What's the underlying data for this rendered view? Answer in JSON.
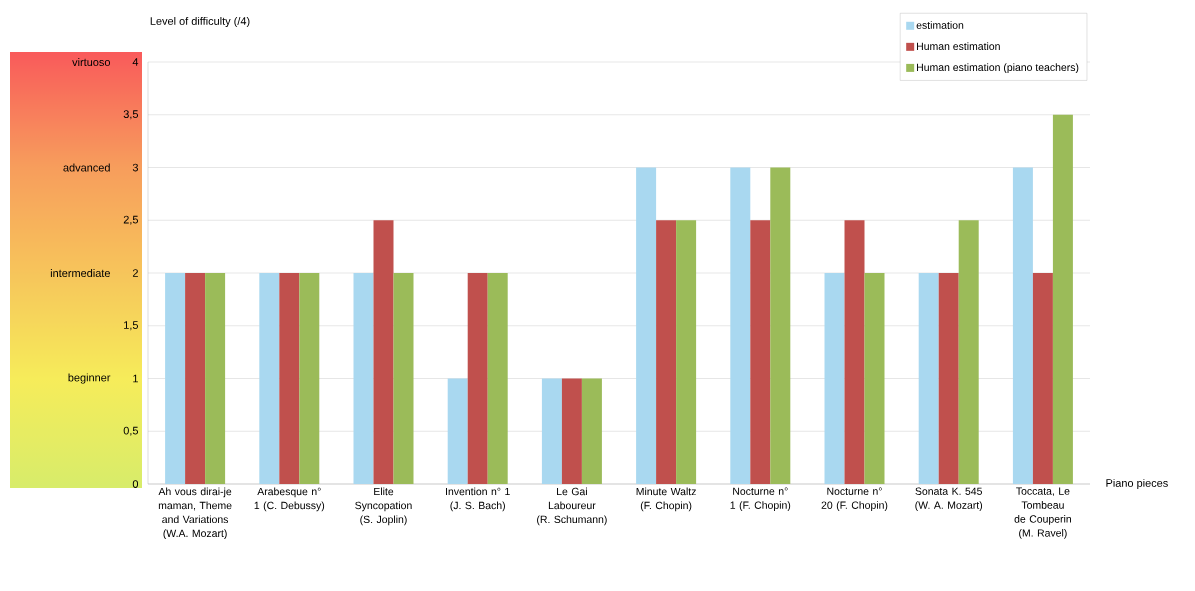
{
  "chart_data": {
    "type": "bar",
    "xlabel": "Piano pieces",
    "ylabel": "Level of difficulty (/4)",
    "categories": [
      "Ah vous dirai-je maman, Theme and Variations (W.A. Mozart)",
      "Arabesque n° 1 (C. Debussy)",
      "Elite Syncopation (S. Joplin)",
      "Invention n° 1 (J. S. Bach)",
      "Le Gai Laboureur (R. Schumann)",
      "Minute Waltz (F. Chopin)",
      "Nocturne n° 1 (F. Chopin)",
      "Nocturne n° 20 (F. Chopin)",
      "Sonata K. 545 (W. A. Mozart)",
      "Toccata, Le Tombeau de Couperin (M. Ravel)"
    ],
    "series": [
      {
        "name": "estimation",
        "color": "#a9d8f0",
        "values": [
          2,
          2,
          2,
          1,
          1,
          3,
          3,
          2,
          2,
          3
        ]
      },
      {
        "name": "Human estimation",
        "color": "#c0504d",
        "values": [
          2,
          2,
          2.5,
          2,
          1,
          2.5,
          2.5,
          2.5,
          2,
          2
        ]
      },
      {
        "name": "Human estimation (piano teachers)",
        "color": "#9bbb59",
        "values": [
          2,
          2,
          2,
          2,
          1,
          2.5,
          3,
          2,
          2.5,
          3.5
        ]
      }
    ],
    "ylim": [
      0,
      4
    ],
    "yticks": [
      0,
      {
        "value": 0.5,
        "label": "0,5"
      },
      1,
      {
        "value": 1.5,
        "label": "1,5"
      },
      2,
      {
        "value": 2.5,
        "label": "2,5"
      },
      3,
      {
        "value": 3.5,
        "label": "3,5"
      },
      4
    ],
    "annotations": [
      "beginner",
      "intermediate",
      "advanced",
      "virtuoso"
    ],
    "grid": "y",
    "legend": "top right"
  }
}
